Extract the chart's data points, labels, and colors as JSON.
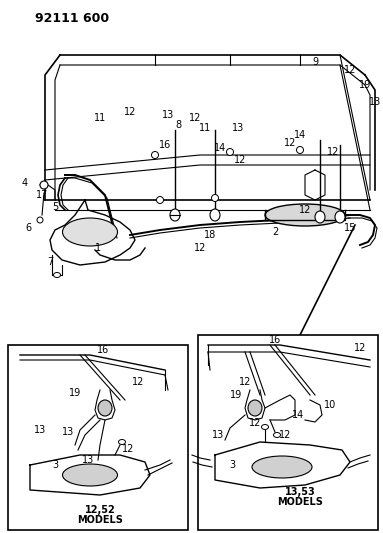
{
  "title": "92111 600",
  "bg_color": "#ffffff",
  "line_color": "#000000",
  "title_fontsize": 9,
  "label_fontsize": 7,
  "fig_width": 3.83,
  "fig_height": 5.33
}
